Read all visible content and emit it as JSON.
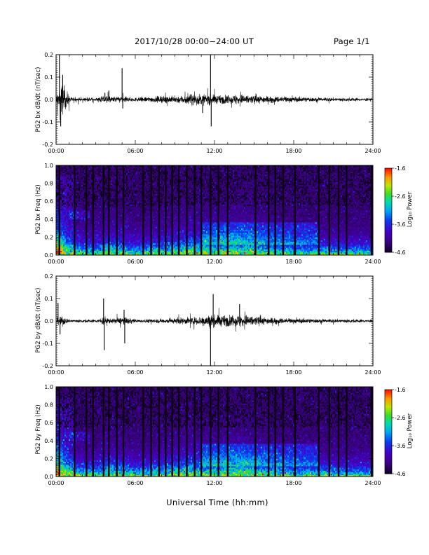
{
  "header": {
    "title": "2017/10/28  00:00−24:00 UT",
    "page": "Page 1/1"
  },
  "x_axis_label": "Universal Time (hh:mm)",
  "colorbar": {
    "label": "Log₁₀ Power",
    "ticks": [
      "-1.6",
      "-2.6",
      "-3.6",
      "-4.6"
    ]
  },
  "chart_data": [
    {
      "type": "line",
      "name": "bx-waveform",
      "ylabel": "PG2 bx dB/dt (nT/sec)",
      "xlim": [
        0,
        24
      ],
      "ylim": [
        -0.2,
        0.2
      ],
      "x_ticks": [
        "00:00",
        "06:00",
        "12:00",
        "18:00",
        "24:00"
      ],
      "y_ticks": [
        "-0.2",
        "-0.1",
        "0.0",
        "0.1",
        "0.2"
      ],
      "envelope": [
        {
          "t": 0.0,
          "a": 0.03
        },
        {
          "t": 0.2,
          "a": 0.1
        },
        {
          "t": 0.5,
          "a": 0.12
        },
        {
          "t": 0.8,
          "a": 0.06
        },
        {
          "t": 1.2,
          "a": 0.015
        },
        {
          "t": 3.0,
          "a": 0.012
        },
        {
          "t": 3.6,
          "a": 0.03
        },
        {
          "t": 4.0,
          "a": 0.02
        },
        {
          "t": 4.8,
          "a": 0.025
        },
        {
          "t": 6.0,
          "a": 0.015
        },
        {
          "t": 8.0,
          "a": 0.025
        },
        {
          "t": 9.5,
          "a": 0.03
        },
        {
          "t": 10.5,
          "a": 0.045
        },
        {
          "t": 11.5,
          "a": 0.04
        },
        {
          "t": 12.5,
          "a": 0.03
        },
        {
          "t": 14.0,
          "a": 0.04
        },
        {
          "t": 15.0,
          "a": 0.03
        },
        {
          "t": 16.5,
          "a": 0.025
        },
        {
          "t": 18.0,
          "a": 0.02
        },
        {
          "t": 20.0,
          "a": 0.015
        },
        {
          "t": 24.0,
          "a": 0.012
        }
      ],
      "spikes": [
        {
          "t": 0.25,
          "v": 0.2
        },
        {
          "t": 0.35,
          "v": -0.12
        },
        {
          "t": 0.5,
          "v": 0.11
        },
        {
          "t": 3.7,
          "v": 0.03
        },
        {
          "t": 4.0,
          "v": 0.04
        },
        {
          "t": 5.0,
          "v": 0.14
        },
        {
          "t": 5.05,
          "v": -0.04
        },
        {
          "t": 11.7,
          "v": 0.2
        },
        {
          "t": 11.75,
          "v": -0.12
        },
        {
          "t": 11.1,
          "v": -0.06
        }
      ]
    },
    {
      "type": "heatmap",
      "name": "bx-spectrogram",
      "ylabel": "PG2 bx Freq (Hz)",
      "xlim": [
        0,
        24
      ],
      "ylim": [
        0.0,
        1.0
      ],
      "zlim": [
        -4.6,
        -1.6
      ],
      "x_ticks": [
        "00:00",
        "06:00",
        "12:00",
        "18:00",
        "24:00"
      ],
      "y_ticks": [
        "0.0",
        "0.2",
        "0.4",
        "0.6",
        "0.8",
        "1.0"
      ],
      "dark_lines": [
        0.25,
        1.4,
        2.3,
        2.8,
        3.6,
        4.0,
        4.6,
        5.1,
        6.6,
        7.2,
        7.8,
        8.3,
        8.8,
        9.3,
        9.9,
        10.5,
        11.0,
        11.7,
        12.3,
        13.0,
        15.1,
        16.1,
        16.6,
        17.2,
        18.1,
        19.9,
        20.7,
        21.4,
        22.0,
        23.9
      ]
    },
    {
      "type": "line",
      "name": "by-waveform",
      "ylabel": "PG2 by dB/dt (nT/sec)",
      "xlim": [
        0,
        24
      ],
      "ylim": [
        -0.2,
        0.2
      ],
      "x_ticks": [
        "00:00",
        "06:00",
        "12:00",
        "18:00",
        "24:00"
      ],
      "y_ticks": [
        "-0.2",
        "-0.1",
        "0.0",
        "0.1",
        "0.2"
      ],
      "envelope": [
        {
          "t": 0.0,
          "a": 0.02
        },
        {
          "t": 0.3,
          "a": 0.04
        },
        {
          "t": 0.6,
          "a": 0.03
        },
        {
          "t": 1.0,
          "a": 0.012
        },
        {
          "t": 3.0,
          "a": 0.012
        },
        {
          "t": 3.7,
          "a": 0.035
        },
        {
          "t": 4.2,
          "a": 0.015
        },
        {
          "t": 5.1,
          "a": 0.03
        },
        {
          "t": 6.0,
          "a": 0.012
        },
        {
          "t": 9.0,
          "a": 0.02
        },
        {
          "t": 10.5,
          "a": 0.03
        },
        {
          "t": 11.8,
          "a": 0.045
        },
        {
          "t": 13.0,
          "a": 0.04
        },
        {
          "t": 14.2,
          "a": 0.05
        },
        {
          "t": 15.5,
          "a": 0.03
        },
        {
          "t": 17.5,
          "a": 0.02
        },
        {
          "t": 20.0,
          "a": 0.015
        },
        {
          "t": 24.0,
          "a": 0.012
        }
      ],
      "spikes": [
        {
          "t": 0.15,
          "v": 0.08
        },
        {
          "t": 0.3,
          "v": -0.06
        },
        {
          "t": 3.6,
          "v": 0.1
        },
        {
          "t": 3.65,
          "v": -0.13
        },
        {
          "t": 5.15,
          "v": 0.05
        },
        {
          "t": 5.2,
          "v": -0.1
        },
        {
          "t": 11.7,
          "v": -0.2
        },
        {
          "t": 11.9,
          "v": 0.12
        },
        {
          "t": 13.9,
          "v": 0.075
        }
      ]
    },
    {
      "type": "heatmap",
      "name": "by-spectrogram",
      "ylabel": "PG2 by Freq (Hz)",
      "xlim": [
        0,
        24
      ],
      "ylim": [
        0.0,
        1.0
      ],
      "zlim": [
        -4.6,
        -1.6
      ],
      "x_ticks": [
        "00:00",
        "06:00",
        "12:00",
        "18:00",
        "24:00"
      ],
      "y_ticks": [
        "0.0",
        "0.2",
        "0.4",
        "0.6",
        "0.8",
        "1.0"
      ],
      "dark_lines": [
        0.25,
        1.4,
        2.3,
        2.8,
        3.6,
        4.0,
        4.6,
        5.1,
        6.6,
        7.2,
        7.8,
        8.3,
        8.8,
        9.3,
        9.9,
        10.5,
        11.0,
        11.7,
        12.3,
        13.0,
        15.1,
        16.1,
        16.6,
        17.2,
        18.1,
        19.9,
        20.7,
        21.4,
        22.0,
        23.9
      ]
    }
  ]
}
